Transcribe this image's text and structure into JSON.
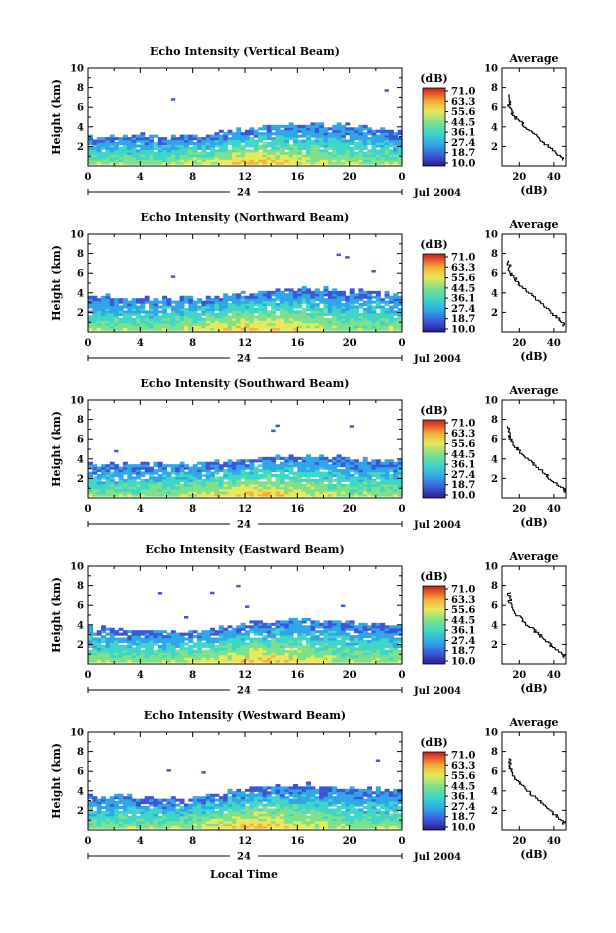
{
  "panels": [
    {
      "title": "Echo Intensity (Vertical Beam)",
      "avg_x_ticks": [
        "20",
        "40"
      ]
    },
    {
      "title": "Echo Intensity (Northward Beam)",
      "avg_x_ticks": [
        "20",
        "40"
      ]
    },
    {
      "title": "Echo Intensity (Southward Beam)",
      "avg_x_ticks": [
        "20",
        "40"
      ]
    },
    {
      "title": "Echo Intensity (Eastward Beam)",
      "avg_x_ticks": [
        "20",
        "40"
      ]
    },
    {
      "title": "Echo Intensity (Westward Beam)",
      "avg_x_ticks": [
        "20",
        "40"
      ]
    }
  ],
  "common": {
    "ylabel": "Height (km)",
    "yticks": [
      "2",
      "4",
      "6",
      "8",
      "10"
    ],
    "xticks": [
      "0",
      "4",
      "8",
      "12",
      "16",
      "20",
      "0"
    ],
    "day_label": "24",
    "date_label": "Jul 2004",
    "colorbar_unit": "(dB)",
    "colorbar_ticks": [
      "71.0",
      "63.3",
      "55.6",
      "44.5",
      "36.1",
      "27.4",
      "18.7",
      "10.0"
    ],
    "avg_title": "Average",
    "avg_xlabel": "(dB)",
    "avg_yticks": [
      "2",
      "4",
      "6",
      "8",
      "10"
    ],
    "bottom_xlabel": "Local Time"
  },
  "colors": {
    "scale": [
      "#2b1d8c",
      "#3a57d8",
      "#2fa6e8",
      "#3fd6c8",
      "#7ee08a",
      "#e8e85a",
      "#f2b23a",
      "#e85a2a",
      "#c81e1e"
    ]
  },
  "chart_data": [
    {
      "type": "heatmap",
      "title": "Echo Intensity (Vertical Beam)",
      "x_unit": "Local Time (h)",
      "xlim": [
        0,
        24
      ],
      "ylim": [
        0,
        10
      ],
      "echo_top_km": [
        [
          0,
          2.8
        ],
        [
          4,
          3.0
        ],
        [
          8,
          2.9
        ],
        [
          12,
          3.6
        ],
        [
          16,
          4.2
        ],
        [
          20,
          4.0
        ],
        [
          24,
          3.6
        ]
      ],
      "average_profile": {
        "height_km": [
          1,
          2,
          3,
          4,
          5,
          6,
          7
        ],
        "db": [
          44,
          37,
          31,
          24,
          18,
          14,
          14
        ],
        "xlim": [
          10,
          47
        ]
      }
    },
    {
      "type": "heatmap",
      "title": "Echo Intensity (Northward Beam)",
      "x_unit": "Local Time (h)",
      "xlim": [
        0,
        24
      ],
      "ylim": [
        0,
        10
      ],
      "echo_top_km": [
        [
          0,
          3.6
        ],
        [
          4,
          3.4
        ],
        [
          8,
          3.3
        ],
        [
          12,
          3.9
        ],
        [
          16,
          4.4
        ],
        [
          20,
          4.1
        ],
        [
          24,
          3.8
        ]
      ],
      "average_profile": {
        "height_km": [
          1,
          2,
          3,
          4,
          5,
          6,
          7
        ],
        "db": [
          45,
          39,
          33,
          26,
          20,
          15,
          14
        ],
        "xlim": [
          10,
          47
        ]
      }
    },
    {
      "type": "heatmap",
      "title": "Echo Intensity (Southward Beam)",
      "x_unit": "Local Time (h)",
      "xlim": [
        0,
        24
      ],
      "ylim": [
        0,
        10
      ],
      "echo_top_km": [
        [
          0,
          3.3
        ],
        [
          4,
          3.4
        ],
        [
          8,
          3.3
        ],
        [
          12,
          3.9
        ],
        [
          16,
          4.3
        ],
        [
          20,
          4.1
        ],
        [
          24,
          3.6
        ]
      ],
      "average_profile": {
        "height_km": [
          1,
          2,
          3,
          4,
          5,
          6,
          7
        ],
        "db": [
          45,
          38,
          32,
          25,
          19,
          15,
          14
        ],
        "xlim": [
          10,
          47
        ]
      }
    },
    {
      "type": "heatmap",
      "title": "Echo Intensity (Eastward Beam)",
      "x_unit": "Local Time (h)",
      "xlim": [
        0,
        24
      ],
      "ylim": [
        0,
        10
      ],
      "echo_top_km": [
        [
          0,
          3.7
        ],
        [
          4,
          3.3
        ],
        [
          8,
          3.2
        ],
        [
          12,
          4.0
        ],
        [
          16,
          4.5
        ],
        [
          20,
          4.2
        ],
        [
          24,
          3.9
        ]
      ],
      "average_profile": {
        "height_km": [
          1,
          2,
          3,
          4,
          5,
          6,
          7
        ],
        "db": [
          45,
          38,
          32,
          25,
          19,
          15,
          14
        ],
        "xlim": [
          10,
          47
        ]
      }
    },
    {
      "type": "heatmap",
      "title": "Echo Intensity (Westward Beam)",
      "x_unit": "Local Time (h)",
      "xlim": [
        0,
        24
      ],
      "ylim": [
        0,
        10
      ],
      "echo_top_km": [
        [
          0,
          3.4
        ],
        [
          4,
          3.2
        ],
        [
          8,
          3.1
        ],
        [
          12,
          4.1
        ],
        [
          16,
          4.6
        ],
        [
          20,
          4.3
        ],
        [
          24,
          3.8
        ]
      ],
      "average_profile": {
        "height_km": [
          1,
          2,
          3,
          4,
          5,
          6,
          7
        ],
        "db": [
          45,
          38,
          32,
          25,
          19,
          15,
          14
        ],
        "xlim": [
          10,
          47
        ]
      }
    }
  ]
}
